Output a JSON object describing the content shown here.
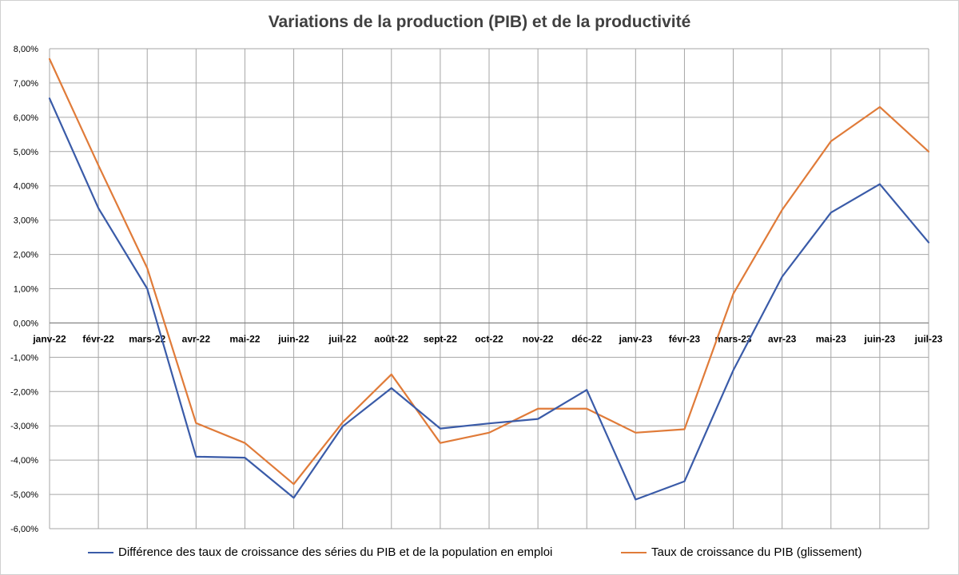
{
  "chart_data": {
    "type": "line",
    "title": "Variations de la production (PIB) et de la productivité",
    "xlabel": "",
    "ylabel": "",
    "categories": [
      "janv-22",
      "févr-22",
      "mars-22",
      "avr-22",
      "mai-22",
      "juin-22",
      "juil-22",
      "août-22",
      "sept-22",
      "oct-22",
      "nov-22",
      "déc-22",
      "janv-23",
      "févr-23",
      "mars-23",
      "avr-23",
      "mai-23",
      "juin-23",
      "juil-23"
    ],
    "y_ticks": [
      "8,00%",
      "7,00%",
      "6,00%",
      "5,00%",
      "4,00%",
      "3,00%",
      "2,00%",
      "1,00%",
      "0,00%",
      "-1,00%",
      "-2,00%",
      "-3,00%",
      "-4,00%",
      "-5,00%",
      "-6,00%"
    ],
    "ylim": [
      -6,
      8
    ],
    "y_unit": "%",
    "grid": true,
    "legend_position": "bottom",
    "series": [
      {
        "name": "Différence des taux de croissance des séries du PIB et de la population en emploi",
        "color": "#3a5ba8",
        "values": [
          6.55,
          3.35,
          1.0,
          -3.9,
          -3.93,
          -5.1,
          -3.02,
          -1.9,
          -3.08,
          -2.93,
          -2.8,
          -1.95,
          -5.15,
          -4.62,
          -1.38,
          1.35,
          3.22,
          4.05,
          2.35
        ]
      },
      {
        "name": "Taux de croissance du PIB (glissement)",
        "color": "#e07b39",
        "values": [
          7.7,
          4.6,
          1.6,
          -2.92,
          -3.5,
          -4.7,
          -2.9,
          -1.5,
          -3.5,
          -3.2,
          -2.5,
          -2.5,
          -3.2,
          -3.1,
          0.85,
          3.3,
          5.3,
          6.3,
          5.0
        ]
      }
    ]
  }
}
